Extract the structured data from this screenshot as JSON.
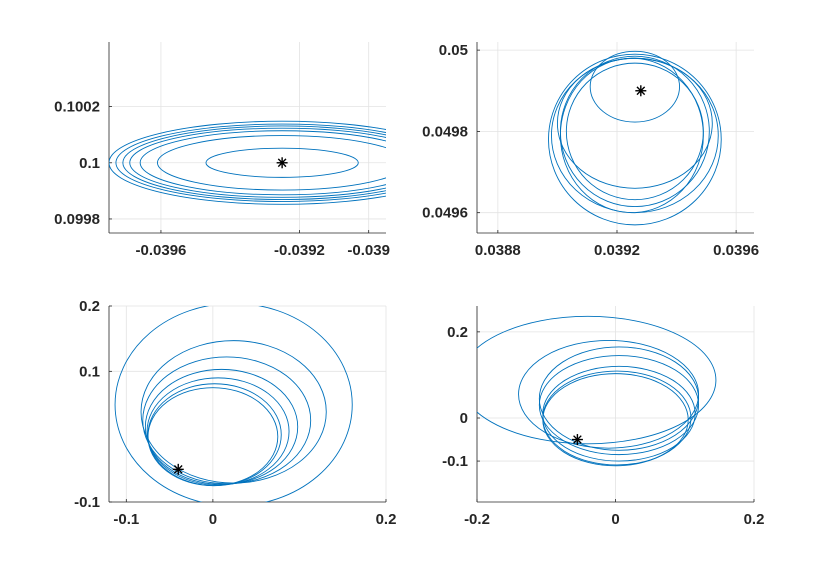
{
  "colors": {
    "orbit": "#0072BD",
    "marker": "#000000",
    "grid": "#e3e3e3",
    "axis": "#262626"
  },
  "chart_data": [
    {
      "type": "line",
      "name": "top-left",
      "xlim": [
        -0.03975,
        -0.03895
      ],
      "ylim": [
        0.09975,
        0.10043
      ],
      "xticks": [
        -0.0396,
        -0.0392,
        -0.039
      ],
      "xtick_labels": [
        "-0.0396",
        "-0.0392",
        "-0.039"
      ],
      "yticks": [
        0.0998,
        0.1,
        0.1002
      ],
      "ytick_labels": [
        "0.0998",
        "0.1",
        "0.1002"
      ],
      "grid": true,
      "marker": {
        "x": -0.03925,
        "y": 0.1
      },
      "orbits": [
        {
          "cx": -0.03925,
          "cy": 0.1,
          "rx": 0.00022,
          "ry": 5.2e-05
        },
        {
          "cx": -0.03925,
          "cy": 0.1,
          "rx": 0.00036,
          "ry": 9.7e-05
        },
        {
          "cx": -0.03925,
          "cy": 0.1,
          "rx": 0.00041,
          "ry": 0.000114
        },
        {
          "cx": -0.03925,
          "cy": 0.1,
          "rx": 0.00044,
          "ry": 0.000123
        },
        {
          "cx": -0.03925,
          "cy": 0.1,
          "rx": 0.00046,
          "ry": 0.000131
        },
        {
          "cx": -0.03925,
          "cy": 0.1,
          "rx": 0.00048,
          "ry": 0.000138
        },
        {
          "cx": -0.03925,
          "cy": 0.1,
          "rx": 0.0005,
          "ry": 0.000148
        }
      ]
    },
    {
      "type": "line",
      "name": "top-right",
      "xlim": [
        0.03873,
        0.03966
      ],
      "ylim": [
        0.04955,
        0.05002
      ],
      "xticks": [
        0.0388,
        0.0392,
        0.0396
      ],
      "xtick_labels": [
        "0.0388",
        "0.0392",
        "0.0396"
      ],
      "yticks": [
        0.0496,
        0.0498,
        0.05
      ],
      "ytick_labels": [
        "0.0496",
        "0.0498",
        "0.05"
      ],
      "grid": true,
      "marker": {
        "x": 0.03928,
        "y": 0.0499
      },
      "orbits": [
        {
          "cx": 0.03926,
          "cy": 0.04991,
          "rx": 0.00015,
          "ry": 8.7e-05
        },
        {
          "cx": 0.03926,
          "cy": 0.0498,
          "rx": 0.00023,
          "ry": 0.000168
        },
        {
          "cx": 0.03926,
          "cy": 0.0498,
          "rx": 0.00025,
          "ry": 0.000185
        },
        {
          "cx": 0.03926,
          "cy": 0.04978,
          "rx": 0.00029,
          "ry": 0.00021
        },
        {
          "cx": 0.03925,
          "cy": 0.04979,
          "rx": 0.00024,
          "ry": 0.00019
        },
        {
          "cx": 0.03926,
          "cy": 0.04979,
          "rx": 0.00028,
          "ry": 0.00019
        },
        {
          "cx": 0.03926,
          "cy": 0.04982,
          "rx": 0.00026,
          "ry": 0.00016
        }
      ]
    },
    {
      "type": "line",
      "name": "bottom-left",
      "xlim": [
        -0.12,
        0.2
      ],
      "ylim": [
        -0.1,
        0.2
      ],
      "xticks": [
        -0.1,
        0,
        0.2
      ],
      "xtick_labels": [
        "-0.1",
        "0",
        "0.2"
      ],
      "yticks": [
        -0.1,
        0.1,
        0.2
      ],
      "ytick_labels": [
        "-0.1",
        "0.1",
        "0.2"
      ],
      "grid": true,
      "marker": {
        "x": -0.04,
        "y": -0.05
      },
      "orbits": [
        {
          "cx": 0.0,
          "cy": 0.0,
          "rx": 0.075,
          "ry": 0.075
        },
        {
          "cx": 0.002,
          "cy": 0.003,
          "rx": 0.077,
          "ry": 0.078
        },
        {
          "cx": 0.006,
          "cy": 0.008,
          "rx": 0.082,
          "ry": 0.082
        },
        {
          "cx": 0.01,
          "cy": 0.015,
          "rx": 0.088,
          "ry": 0.088
        },
        {
          "cx": 0.016,
          "cy": 0.025,
          "rx": 0.097,
          "ry": 0.097
        },
        {
          "cx": 0.024,
          "cy": 0.038,
          "rx": 0.107,
          "ry": 0.109
        },
        {
          "cx": 0.024,
          "cy": 0.049,
          "rx": 0.137,
          "ry": 0.155
        }
      ]
    },
    {
      "type": "line",
      "name": "bottom-right",
      "xlim": [
        -0.2,
        0.2
      ],
      "ylim": [
        -0.195,
        0.26
      ],
      "xticks": [
        -0.2,
        0,
        0.2
      ],
      "xtick_labels": [
        "-0.2",
        "0",
        "0.2"
      ],
      "yticks": [
        -0.1,
        0,
        0.2
      ],
      "ytick_labels": [
        "-0.1",
        "0",
        "0.2"
      ],
      "grid": true,
      "marker": {
        "x": -0.055,
        "y": -0.05
      },
      "orbits": [
        {
          "cx": 0.0,
          "cy": -0.004,
          "rx": 0.105,
          "ry": 0.107
        },
        {
          "cx": 0.002,
          "cy": 0.0,
          "rx": 0.107,
          "ry": 0.109
        },
        {
          "cx": 0.005,
          "cy": 0.01,
          "rx": 0.11,
          "ry": 0.11
        },
        {
          "cx": 0.005,
          "cy": 0.03,
          "rx": 0.115,
          "ry": 0.115
        },
        {
          "cx": 0.005,
          "cy": 0.045,
          "rx": 0.115,
          "ry": 0.12
        },
        {
          "cx": -0.01,
          "cy": 0.055,
          "rx": 0.13,
          "ry": 0.125
        },
        {
          "cx": -0.04,
          "cy": 0.088,
          "rx": 0.185,
          "ry": 0.148
        }
      ]
    }
  ]
}
